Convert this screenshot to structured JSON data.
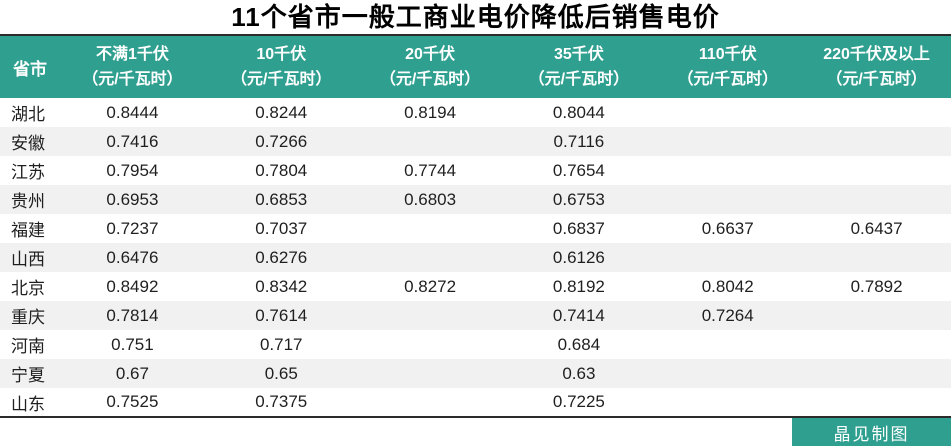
{
  "title": "11个省市一般工商业电价降低后销售电价",
  "colors": {
    "accent": "#2f9f90",
    "row_stripe": "#f1f1f1",
    "table_border": "#2b2b2b",
    "header_text": "#ffffff",
    "body_text": "#1f1f1f"
  },
  "footer": {
    "credit_label": "晶见制图"
  },
  "chart_data": {
    "type": "table",
    "title": "11个省市一般工商业电价降低后销售电价",
    "province_column_header": "省市",
    "unit": "（元/千瓦时）",
    "column_headers": [
      {
        "label": "不满1千伏",
        "unit": "（元/千瓦时）"
      },
      {
        "label": "10千伏",
        "unit": "（元/千瓦时）"
      },
      {
        "label": "20千伏",
        "unit": "（元/千瓦时）"
      },
      {
        "label": "35千伏",
        "unit": "（元/千瓦时）"
      },
      {
        "label": "110千伏",
        "unit": "（元/千瓦时）"
      },
      {
        "label": "220千伏及以上",
        "unit": "（元/千瓦时）"
      }
    ],
    "rows": [
      {
        "province": "湖北",
        "values": [
          "0.8444",
          "0.8244",
          "0.8194",
          "0.8044",
          "",
          ""
        ]
      },
      {
        "province": "安徽",
        "values": [
          "0.7416",
          "0.7266",
          "",
          "0.7116",
          "",
          ""
        ]
      },
      {
        "province": "江苏",
        "values": [
          "0.7954",
          "0.7804",
          "0.7744",
          "0.7654",
          "",
          ""
        ]
      },
      {
        "province": "贵州",
        "values": [
          "0.6953",
          "0.6853",
          "0.6803",
          "0.6753",
          "",
          ""
        ]
      },
      {
        "province": "福建",
        "values": [
          "0.7237",
          "0.7037",
          "",
          "0.6837",
          "0.6637",
          "0.6437"
        ]
      },
      {
        "province": "山西",
        "values": [
          "0.6476",
          "0.6276",
          "",
          "0.6126",
          "",
          ""
        ]
      },
      {
        "province": "北京",
        "values": [
          "0.8492",
          "0.8342",
          "0.8272",
          "0.8192",
          "0.8042",
          "0.7892"
        ]
      },
      {
        "province": "重庆",
        "values": [
          "0.7814",
          "0.7614",
          "",
          "0.7414",
          "0.7264",
          ""
        ]
      },
      {
        "province": "河南",
        "values": [
          "0.751",
          "0.717",
          "",
          "0.684",
          "",
          ""
        ]
      },
      {
        "province": "宁夏",
        "values": [
          "0.67",
          "0.65",
          "",
          "0.63",
          "",
          ""
        ]
      },
      {
        "province": "山东",
        "values": [
          "0.7525",
          "0.7375",
          "",
          "0.7225",
          "",
          ""
        ]
      }
    ]
  }
}
